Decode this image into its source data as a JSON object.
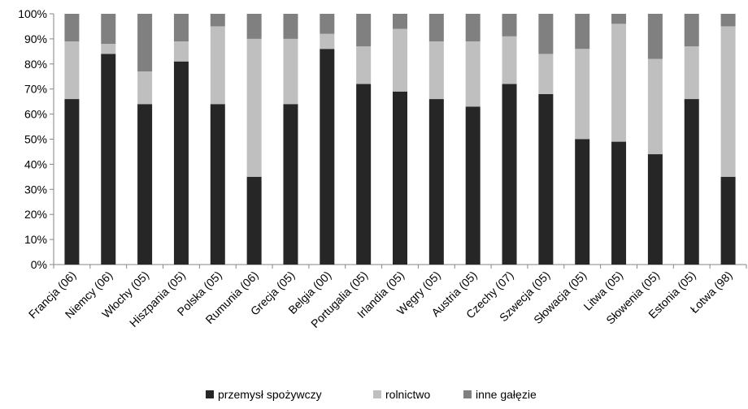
{
  "chart_data": {
    "type": "bar",
    "stacked": true,
    "normalized": true,
    "categories": [
      "Francja (06)",
      "Niemcy (06)",
      "Włochy (05)",
      "Hiszpania (05)",
      "Polska (05)",
      "Rumunia (06)",
      "Grecja (05)",
      "Belgia (00)",
      "Portugalia (05)",
      "Irlandia (05)",
      "Węgry (05)",
      "Austria (05)",
      "Czechy (07)",
      "Szwecja (05)",
      "Słowacja (05)",
      "Litwa (05)",
      "Słowenia (05)",
      "Estonia (05)",
      "Łotwa (98)"
    ],
    "series": [
      {
        "name": "przemysł spożywczy",
        "color": "#262626",
        "values": [
          66,
          84,
          64,
          81,
          64,
          35,
          64,
          86,
          72,
          69,
          66,
          63,
          72,
          68,
          50,
          49,
          44,
          66,
          35
        ]
      },
      {
        "name": "rolnictwo",
        "color": "#bfbfbf",
        "values": [
          23,
          4,
          13,
          8,
          31,
          55,
          26,
          6,
          15,
          25,
          23,
          26,
          19,
          16,
          36,
          47,
          38,
          21,
          60
        ]
      },
      {
        "name": "inne gałęzie",
        "color": "#808080",
        "values": [
          11,
          12,
          23,
          11,
          5,
          10,
          10,
          8,
          13,
          6,
          11,
          11,
          9,
          16,
          14,
          4,
          18,
          13,
          5
        ]
      }
    ],
    "ylim": [
      0,
      100
    ],
    "yticks": [
      "0%",
      "10%",
      "20%",
      "30%",
      "40%",
      "50%",
      "60%",
      "70%",
      "80%",
      "90%",
      "100%"
    ],
    "grid": false,
    "legend": "bottom"
  }
}
